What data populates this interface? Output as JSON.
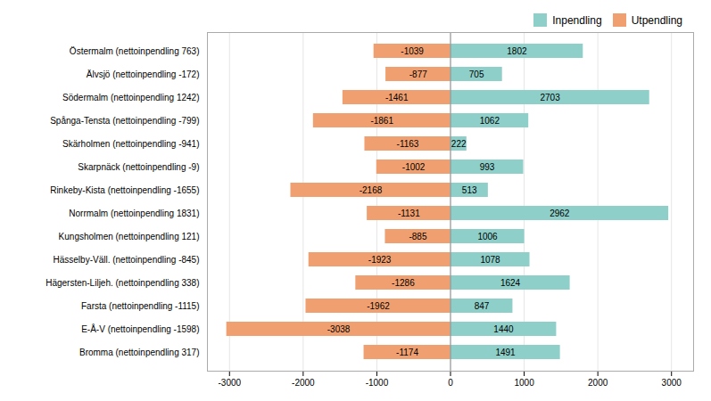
{
  "chart_data": {
    "type": "bar",
    "orientation": "horizontal",
    "categories": [
      "Bromma (nettoinpendling 317)",
      "E-Å-V (nettoinpendling -1598)",
      "Farsta (nettoinpendling -1115)",
      "Hägersten-Liljeh. (nettoinpendling 338)",
      "Hässelby-Väll. (nettoinpendling -845)",
      "Kungsholmen (nettoinpendling 121)",
      "Norrmalm (nettoinpendling 1831)",
      "Rinkeby-Kista (nettoinpendling -1655)",
      "Skarpnäck (nettoinpendling -9)",
      "Skärholmen (nettoinpendling -941)",
      "Spånga-Tensta (nettoinpendling -799)",
      "Södermalm (nettoinpendling 1242)",
      "Älvsjö (nettoinpendling -172)",
      "Östermalm (nettoinpendling 763)"
    ],
    "series": [
      {
        "name": "Inpendling",
        "color": "#8ecfc9",
        "values": [
          1491,
          1440,
          847,
          1624,
          1078,
          1006,
          2962,
          513,
          993,
          222,
          1062,
          2703,
          705,
          1802
        ]
      },
      {
        "name": "Utpendling",
        "color": "#f0a070",
        "values": [
          -1174,
          -3038,
          -1962,
          -1286,
          -1923,
          -885,
          -1131,
          -2168,
          -1002,
          -1163,
          -1861,
          -1461,
          -877,
          -1039
        ]
      }
    ],
    "xlim": [
      -3300,
      3300
    ],
    "xticks": [
      -3000,
      -2000,
      -1000,
      0,
      1000,
      2000,
      3000
    ],
    "grid": true,
    "legend": "upper right",
    "data_labels": true
  }
}
